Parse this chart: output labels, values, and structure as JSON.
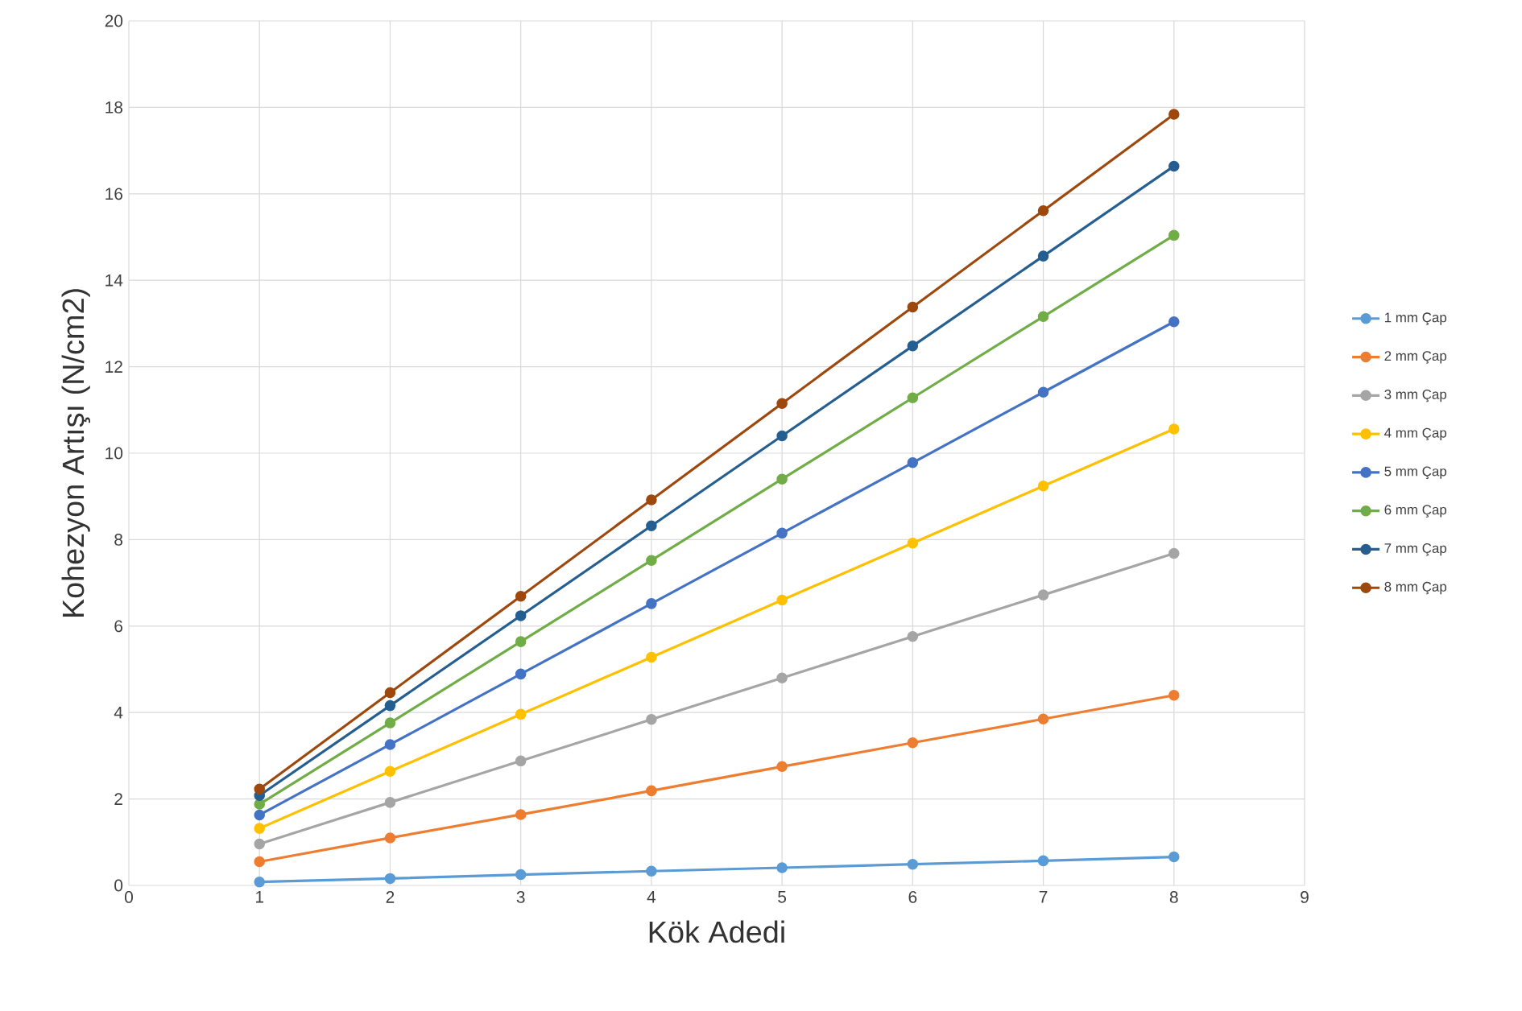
{
  "chart_data": {
    "type": "line",
    "xlabel": "Kök Adedi",
    "ylabel": "Kohezyon Artışı (N/cm2)",
    "x": [
      1,
      2,
      3,
      4,
      5,
      6,
      7,
      8
    ],
    "xlim": [
      0,
      9
    ],
    "xticks": [
      0,
      1,
      2,
      3,
      4,
      5,
      6,
      7,
      8,
      9
    ],
    "ylim": [
      0,
      20
    ],
    "yticks": [
      0,
      2,
      4,
      6,
      8,
      10,
      12,
      14,
      16,
      18,
      20
    ],
    "grid": true,
    "legend": "right",
    "marker": "circle",
    "line_style": "solid",
    "series": [
      {
        "name": "1 mm Çap",
        "color": "#5b9bd5",
        "values": [
          0.08,
          0.16,
          0.25,
          0.33,
          0.41,
          0.49,
          0.57,
          0.66
        ]
      },
      {
        "name": "2 mm Çap",
        "color": "#ed7d31",
        "values": [
          0.55,
          1.1,
          1.64,
          2.19,
          2.75,
          3.3,
          3.85,
          4.4
        ]
      },
      {
        "name": "3 mm Çap",
        "color": "#a5a5a5",
        "values": [
          0.96,
          1.92,
          2.88,
          3.84,
          4.8,
          5.76,
          6.72,
          7.68
        ]
      },
      {
        "name": "4 mm Çap",
        "color": "#ffc000",
        "values": [
          1.32,
          2.64,
          3.96,
          5.28,
          6.6,
          7.92,
          9.24,
          10.56
        ]
      },
      {
        "name": "5 mm Çap",
        "color": "#4472c4",
        "values": [
          1.63,
          3.26,
          4.89,
          6.52,
          8.15,
          9.78,
          11.41,
          13.04
        ]
      },
      {
        "name": "6 mm Çap",
        "color": "#70ad47",
        "values": [
          1.88,
          3.76,
          5.64,
          7.52,
          9.4,
          11.28,
          13.16,
          15.04
        ]
      },
      {
        "name": "7 mm Çap",
        "color": "#255e91",
        "values": [
          2.08,
          4.16,
          6.24,
          8.32,
          10.4,
          12.48,
          14.56,
          16.64
        ]
      },
      {
        "name": "8 mm Çap",
        "color": "#9e480e",
        "values": [
          2.23,
          4.46,
          6.69,
          8.92,
          11.15,
          13.38,
          15.61,
          17.84
        ]
      }
    ]
  }
}
